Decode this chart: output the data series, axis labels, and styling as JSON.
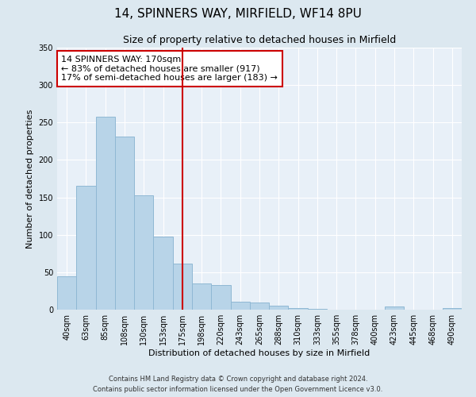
{
  "title1": "14, SPINNERS WAY, MIRFIELD, WF14 8PU",
  "title2": "Size of property relative to detached houses in Mirfield",
  "xlabel": "Distribution of detached houses by size in Mirfield",
  "ylabel": "Number of detached properties",
  "bar_labels": [
    "40sqm",
    "63sqm",
    "85sqm",
    "108sqm",
    "130sqm",
    "153sqm",
    "175sqm",
    "198sqm",
    "220sqm",
    "243sqm",
    "265sqm",
    "288sqm",
    "310sqm",
    "333sqm",
    "355sqm",
    "378sqm",
    "400sqm",
    "423sqm",
    "445sqm",
    "468sqm",
    "490sqm"
  ],
  "bar_values": [
    45,
    165,
    258,
    231,
    153,
    98,
    62,
    35,
    33,
    11,
    10,
    5,
    2,
    1,
    0,
    0,
    0,
    4,
    0,
    0,
    2
  ],
  "bar_color": "#b8d4e8",
  "bar_edge_color": "#90b8d4",
  "vline_x": 6,
  "vline_color": "#cc0000",
  "annotation_text": "14 SPINNERS WAY: 170sqm\n← 83% of detached houses are smaller (917)\n17% of semi-detached houses are larger (183) →",
  "annotation_box_color": "#ffffff",
  "annotation_box_edge": "#cc0000",
  "ylim": [
    0,
    350
  ],
  "yticks": [
    0,
    50,
    100,
    150,
    200,
    250,
    300,
    350
  ],
  "footer1": "Contains HM Land Registry data © Crown copyright and database right 2024.",
  "footer2": "Contains public sector information licensed under the Open Government Licence v3.0.",
  "bg_color": "#dce8f0",
  "plot_bg_color": "#e8f0f8",
  "grid_color": "#ffffff",
  "title1_fontsize": 11,
  "title2_fontsize": 9,
  "ylabel_fontsize": 8,
  "xlabel_fontsize": 8,
  "tick_fontsize": 7,
  "footer_fontsize": 6
}
